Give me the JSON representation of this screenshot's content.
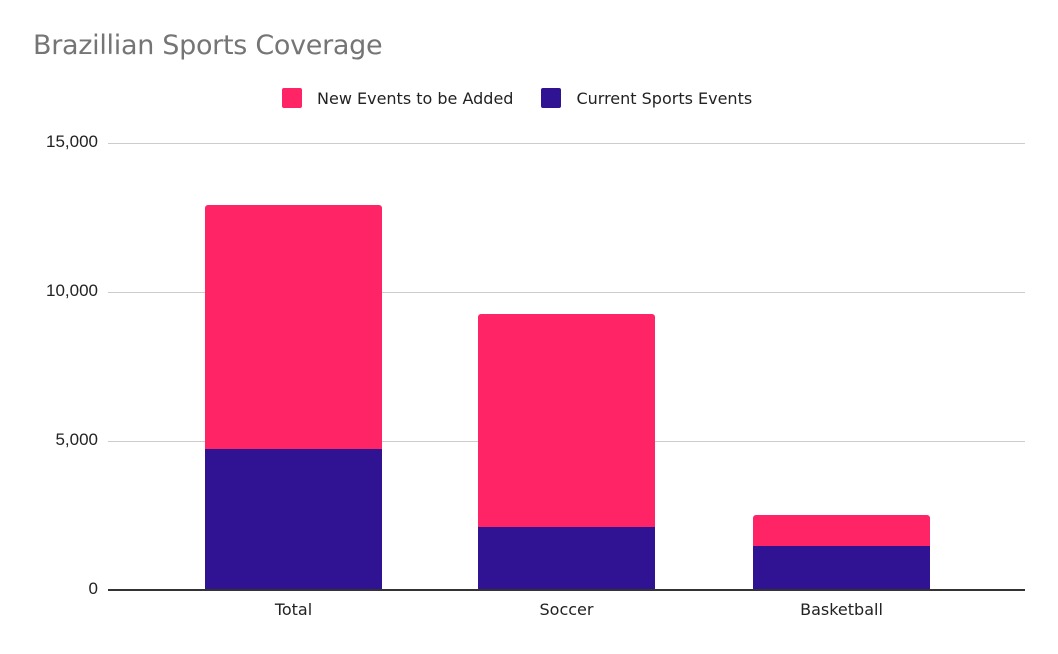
{
  "chart": {
    "title": "Brazillian Sports Coverage",
    "legend": [
      {
        "label": "New Events to be Added",
        "color": "#FF2465"
      },
      {
        "label": "Current Sports Events",
        "color": "#2F1393"
      }
    ],
    "y_ticks": [
      "15,000",
      "10,000",
      "5,000",
      "0"
    ],
    "x_labels": [
      "Total",
      "Soccer",
      "Basketball"
    ]
  },
  "chart_data": {
    "type": "bar",
    "stacked": true,
    "title": "Brazillian Sports Coverage",
    "categories": [
      "Total",
      "Soccer",
      "Basketball"
    ],
    "series": [
      {
        "name": "Current Sports Events",
        "color": "#2F1393",
        "values": [
          4730,
          2110,
          1480
        ]
      },
      {
        "name": "New Events to be Added",
        "color": "#FF2465",
        "values": [
          8190,
          7150,
          1040
        ]
      }
    ],
    "stack_totals": [
      12920,
      9260,
      2520
    ],
    "xlabel": "",
    "ylabel": "",
    "ylim": [
      0,
      15000
    ],
    "y_ticks": [
      0,
      5000,
      10000,
      15000
    ],
    "grid": true,
    "legend_position": "top"
  }
}
